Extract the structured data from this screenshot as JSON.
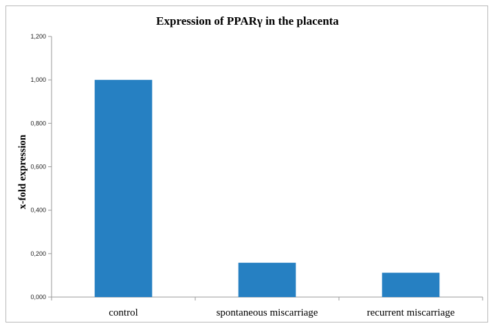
{
  "chart_data": {
    "type": "bar",
    "title": "Expression of PPARγ in the placenta",
    "xlabel": "",
    "ylabel": "x-fold expression",
    "categories": [
      "control",
      "spontaneous miscarriage",
      "recurrent miscarriage"
    ],
    "values": [
      1.0,
      0.158,
      0.112
    ],
    "ylim": [
      0,
      1.2
    ],
    "yticks": [
      0,
      0.2,
      0.4,
      0.6,
      0.8,
      1.0,
      1.2
    ],
    "ytick_labels": [
      "0,000",
      "0,200",
      "0,400",
      "0,600",
      "0,800",
      "1,000",
      "1,200"
    ],
    "grid": false,
    "legend": "none",
    "bar_color": "#2680c2"
  }
}
